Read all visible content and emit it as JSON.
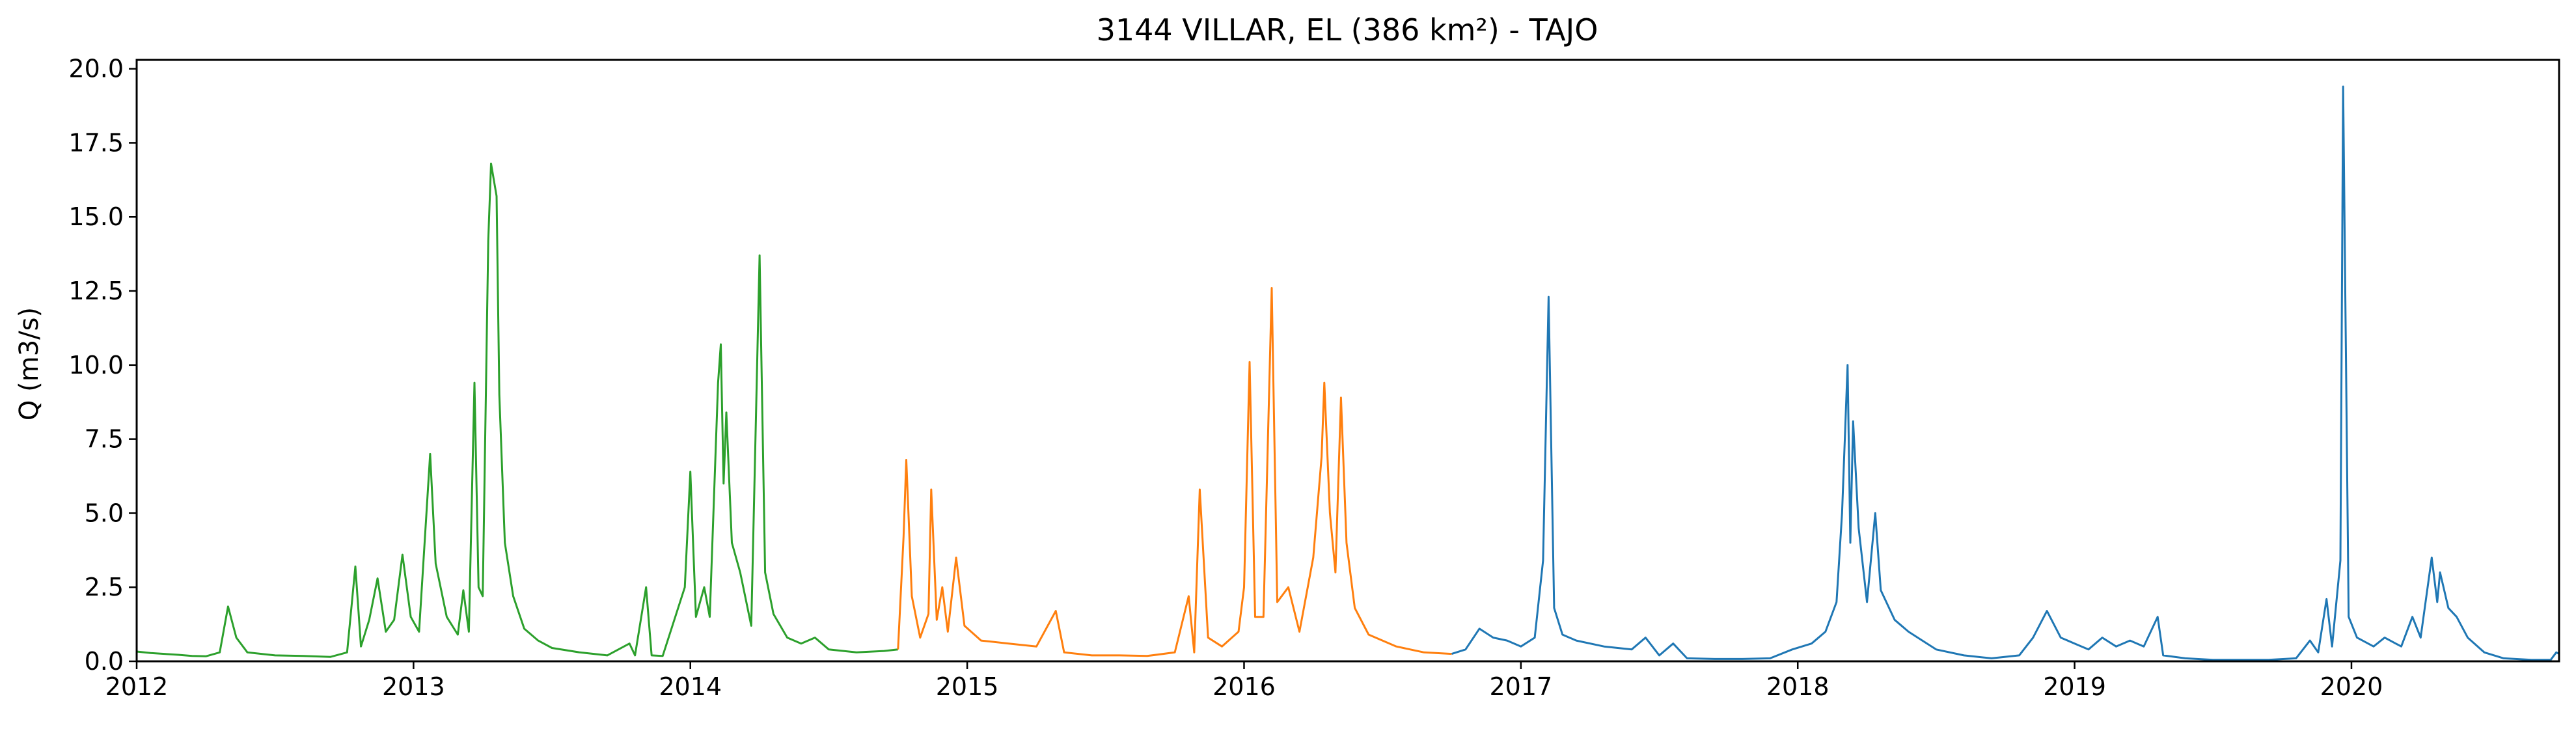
{
  "chart_data": {
    "type": "line",
    "title": "3144 VILLAR, EL (386 km²) - TAJO",
    "xlabel": "",
    "ylabel": "Q (m3/s)",
    "xlim": [
      2012.0,
      2020.75
    ],
    "ylim": [
      0,
      20.3
    ],
    "x_ticks": [
      2012,
      2013,
      2014,
      2015,
      2016,
      2017,
      2018,
      2019,
      2020
    ],
    "y_ticks": [
      0.0,
      2.5,
      5.0,
      7.5,
      10.0,
      12.5,
      15.0,
      17.5,
      20.0
    ],
    "grid": false,
    "legend": "none",
    "series": [
      {
        "color": "#2ca02c",
        "x_unit": "decimal year",
        "points": [
          [
            2012.0,
            0.33
          ],
          [
            2012.05,
            0.28
          ],
          [
            2012.1,
            0.25
          ],
          [
            2012.15,
            0.22
          ],
          [
            2012.2,
            0.18
          ],
          [
            2012.25,
            0.17
          ],
          [
            2012.3,
            0.3
          ],
          [
            2012.33,
            1.85
          ],
          [
            2012.36,
            0.8
          ],
          [
            2012.4,
            0.3
          ],
          [
            2012.5,
            0.2
          ],
          [
            2012.6,
            0.18
          ],
          [
            2012.7,
            0.15
          ],
          [
            2012.76,
            0.3
          ],
          [
            2012.79,
            3.2
          ],
          [
            2012.81,
            0.5
          ],
          [
            2012.84,
            1.4
          ],
          [
            2012.87,
            2.8
          ],
          [
            2012.9,
            1.0
          ],
          [
            2012.93,
            1.4
          ],
          [
            2012.96,
            3.6
          ],
          [
            2012.99,
            1.5
          ],
          [
            2013.02,
            1.0
          ],
          [
            2013.06,
            7.0
          ],
          [
            2013.08,
            3.3
          ],
          [
            2013.12,
            1.5
          ],
          [
            2013.16,
            0.9
          ],
          [
            2013.18,
            2.4
          ],
          [
            2013.2,
            1.0
          ],
          [
            2013.22,
            9.4
          ],
          [
            2013.235,
            2.5
          ],
          [
            2013.25,
            2.2
          ],
          [
            2013.27,
            14.2
          ],
          [
            2013.28,
            16.8
          ],
          [
            2013.3,
            15.7
          ],
          [
            2013.31,
            9.0
          ],
          [
            2013.33,
            4.0
          ],
          [
            2013.36,
            2.2
          ],
          [
            2013.4,
            1.1
          ],
          [
            2013.45,
            0.7
          ],
          [
            2013.5,
            0.45
          ],
          [
            2013.6,
            0.3
          ],
          [
            2013.7,
            0.2
          ],
          [
            2013.78,
            0.6
          ],
          [
            2013.8,
            0.2
          ],
          [
            2013.84,
            2.5
          ],
          [
            2013.86,
            0.2
          ],
          [
            2013.9,
            0.18
          ],
          [
            2013.98,
            2.5
          ],
          [
            2014.0,
            6.4
          ],
          [
            2014.02,
            1.5
          ],
          [
            2014.05,
            2.5
          ],
          [
            2014.07,
            1.5
          ],
          [
            2014.1,
            9.4
          ],
          [
            2014.11,
            10.7
          ],
          [
            2014.12,
            6.0
          ],
          [
            2014.13,
            8.4
          ],
          [
            2014.15,
            4.0
          ],
          [
            2014.18,
            3.0
          ],
          [
            2014.22,
            1.2
          ],
          [
            2014.25,
            13.7
          ],
          [
            2014.27,
            3.0
          ],
          [
            2014.3,
            1.6
          ],
          [
            2014.35,
            0.8
          ],
          [
            2014.4,
            0.6
          ],
          [
            2014.45,
            0.8
          ],
          [
            2014.5,
            0.4
          ],
          [
            2014.6,
            0.3
          ],
          [
            2014.7,
            0.35
          ],
          [
            2014.75,
            0.4
          ]
        ]
      },
      {
        "color": "#ff7f0e",
        "x_unit": "decimal year",
        "points": [
          [
            2014.75,
            0.4
          ],
          [
            2014.77,
            4.2
          ],
          [
            2014.78,
            6.8
          ],
          [
            2014.8,
            2.2
          ],
          [
            2014.83,
            0.8
          ],
          [
            2014.86,
            1.6
          ],
          [
            2014.87,
            5.8
          ],
          [
            2014.89,
            1.4
          ],
          [
            2014.91,
            2.5
          ],
          [
            2014.93,
            1.0
          ],
          [
            2014.96,
            3.5
          ],
          [
            2014.99,
            1.2
          ],
          [
            2015.05,
            0.7
          ],
          [
            2015.15,
            0.6
          ],
          [
            2015.25,
            0.5
          ],
          [
            2015.32,
            1.7
          ],
          [
            2015.35,
            0.3
          ],
          [
            2015.45,
            0.2
          ],
          [
            2015.55,
            0.2
          ],
          [
            2015.65,
            0.18
          ],
          [
            2015.75,
            0.3
          ],
          [
            2015.8,
            2.2
          ],
          [
            2015.82,
            0.3
          ],
          [
            2015.84,
            5.8
          ],
          [
            2015.87,
            0.8
          ],
          [
            2015.92,
            0.5
          ],
          [
            2015.98,
            1.0
          ],
          [
            2016.0,
            2.5
          ],
          [
            2016.02,
            10.1
          ],
          [
            2016.04,
            1.5
          ],
          [
            2016.07,
            1.5
          ],
          [
            2016.1,
            12.6
          ],
          [
            2016.12,
            2.0
          ],
          [
            2016.16,
            2.5
          ],
          [
            2016.2,
            1.0
          ],
          [
            2016.25,
            3.5
          ],
          [
            2016.28,
            6.9
          ],
          [
            2016.29,
            9.4
          ],
          [
            2016.31,
            5.0
          ],
          [
            2016.33,
            3.0
          ],
          [
            2016.35,
            8.9
          ],
          [
            2016.37,
            4.0
          ],
          [
            2016.4,
            1.8
          ],
          [
            2016.45,
            0.9
          ],
          [
            2016.55,
            0.5
          ],
          [
            2016.65,
            0.3
          ],
          [
            2016.75,
            0.25
          ]
        ]
      },
      {
        "color": "#1f77b4",
        "x_unit": "decimal year",
        "points": [
          [
            2016.75,
            0.25
          ],
          [
            2016.8,
            0.4
          ],
          [
            2016.85,
            1.1
          ],
          [
            2016.9,
            0.8
          ],
          [
            2016.95,
            0.7
          ],
          [
            2017.0,
            0.5
          ],
          [
            2017.05,
            0.8
          ],
          [
            2017.08,
            3.4
          ],
          [
            2017.1,
            12.3
          ],
          [
            2017.12,
            1.8
          ],
          [
            2017.15,
            0.9
          ],
          [
            2017.2,
            0.7
          ],
          [
            2017.3,
            0.5
          ],
          [
            2017.4,
            0.4
          ],
          [
            2017.45,
            0.8
          ],
          [
            2017.5,
            0.2
          ],
          [
            2017.55,
            0.6
          ],
          [
            2017.6,
            0.1
          ],
          [
            2017.7,
            0.08
          ],
          [
            2017.8,
            0.08
          ],
          [
            2017.9,
            0.1
          ],
          [
            2017.98,
            0.4
          ],
          [
            2018.05,
            0.6
          ],
          [
            2018.1,
            1.0
          ],
          [
            2018.14,
            2.0
          ],
          [
            2018.16,
            5.0
          ],
          [
            2018.18,
            10.0
          ],
          [
            2018.19,
            4.0
          ],
          [
            2018.2,
            8.1
          ],
          [
            2018.22,
            4.5
          ],
          [
            2018.25,
            2.0
          ],
          [
            2018.28,
            5.0
          ],
          [
            2018.3,
            2.4
          ],
          [
            2018.35,
            1.4
          ],
          [
            2018.4,
            1.0
          ],
          [
            2018.45,
            0.7
          ],
          [
            2018.5,
            0.4
          ],
          [
            2018.6,
            0.2
          ],
          [
            2018.7,
            0.1
          ],
          [
            2018.8,
            0.2
          ],
          [
            2018.85,
            0.8
          ],
          [
            2018.9,
            1.7
          ],
          [
            2018.95,
            0.8
          ],
          [
            2019.0,
            0.6
          ],
          [
            2019.05,
            0.4
          ],
          [
            2019.1,
            0.8
          ],
          [
            2019.15,
            0.5
          ],
          [
            2019.2,
            0.7
          ],
          [
            2019.25,
            0.5
          ],
          [
            2019.3,
            1.5
          ],
          [
            2019.32,
            0.2
          ],
          [
            2019.4,
            0.1
          ],
          [
            2019.5,
            0.05
          ],
          [
            2019.6,
            0.05
          ],
          [
            2019.7,
            0.05
          ],
          [
            2019.8,
            0.1
          ],
          [
            2019.85,
            0.7
          ],
          [
            2019.88,
            0.3
          ],
          [
            2019.91,
            2.1
          ],
          [
            2019.93,
            0.5
          ],
          [
            2019.96,
            3.4
          ],
          [
            2019.97,
            19.4
          ],
          [
            2019.99,
            1.5
          ],
          [
            2020.02,
            0.8
          ],
          [
            2020.08,
            0.5
          ],
          [
            2020.12,
            0.8
          ],
          [
            2020.18,
            0.5
          ],
          [
            2020.22,
            1.5
          ],
          [
            2020.25,
            0.8
          ],
          [
            2020.29,
            3.5
          ],
          [
            2020.31,
            2.0
          ],
          [
            2020.32,
            3.0
          ],
          [
            2020.35,
            1.8
          ],
          [
            2020.38,
            1.5
          ],
          [
            2020.42,
            0.8
          ],
          [
            2020.48,
            0.3
          ],
          [
            2020.55,
            0.1
          ],
          [
            2020.65,
            0.05
          ],
          [
            2020.72,
            0.05
          ],
          [
            2020.74,
            0.3
          ],
          [
            2020.75,
            0.25
          ]
        ]
      }
    ]
  }
}
